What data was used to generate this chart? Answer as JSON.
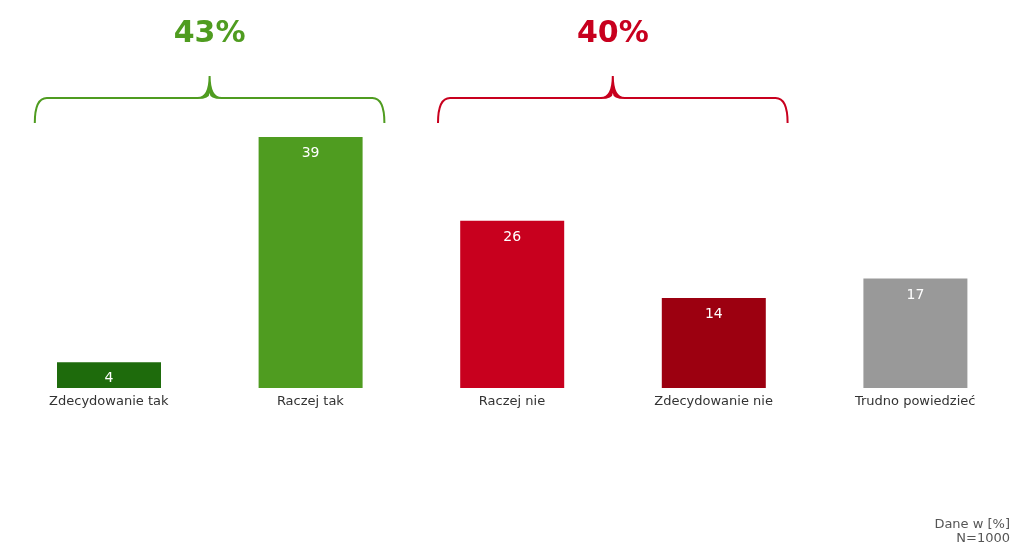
{
  "chart_data": {
    "type": "bar",
    "categories": [
      "Zdecydowanie tak",
      "Raczej tak",
      "Raczej nie",
      "Zdecydowanie nie",
      "Trudno powiedzieć"
    ],
    "values": [
      4,
      39,
      26,
      14,
      17
    ],
    "colors": [
      "#1e6b0c",
      "#4f9c20",
      "#c8001e",
      "#9c0010",
      "#999999"
    ],
    "data_labels": true,
    "annotations": [
      "43%",
      "40%",
      "Dane w [%]",
      "N=1000"
    ]
  }
}
